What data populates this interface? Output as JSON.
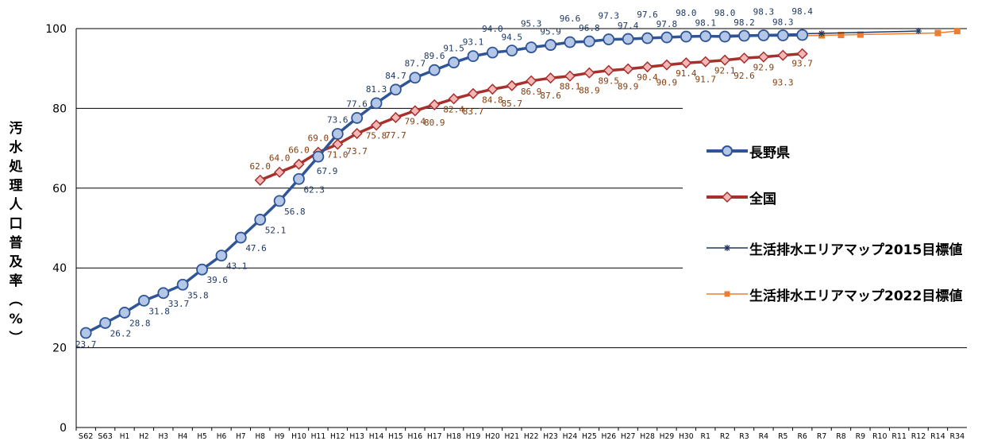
{
  "chart_data": {
    "type": "line",
    "title": "",
    "ylabel": "汚水処理人口普及率(%)",
    "xlabel": "",
    "ylim": [
      0,
      100
    ],
    "yticks": [
      0,
      20,
      40,
      60,
      80,
      100
    ],
    "grid": "horizontal",
    "legend_position": "right",
    "categories": [
      "S62",
      "S63",
      "H1",
      "H2",
      "H3",
      "H4",
      "H5",
      "H6",
      "H7",
      "H8",
      "H9",
      "H10",
      "H11",
      "H12",
      "H13",
      "H14",
      "H15",
      "H16",
      "H17",
      "H18",
      "H19",
      "H20",
      "H21",
      "H22",
      "H23",
      "H24",
      "H25",
      "H26",
      "H27",
      "H28",
      "H29",
      "H30",
      "R1",
      "R2",
      "R3",
      "R4",
      "R5",
      "R6",
      "R7",
      "R8",
      "R9",
      "R10",
      "R11",
      "R12",
      "R14",
      "R34"
    ],
    "series": [
      {
        "name": "長野県",
        "color": "#2F5597",
        "marker": "circle",
        "marker_fill": "#B4C7E7",
        "label_color": "#1F3864",
        "x": [
          "S62",
          "S63",
          "H1",
          "H2",
          "H3",
          "H4",
          "H5",
          "H6",
          "H7",
          "H8",
          "H9",
          "H10",
          "H11",
          "H12",
          "H13",
          "H14",
          "H15",
          "H16",
          "H17",
          "H18",
          "H19",
          "H20",
          "H21",
          "H22",
          "H23",
          "H24",
          "H25",
          "H26",
          "H27",
          "H28",
          "H29",
          "H30",
          "R1",
          "R2",
          "R3",
          "R4",
          "R5",
          "R6"
        ],
        "values": [
          23.7,
          26.2,
          28.8,
          31.8,
          33.7,
          35.8,
          39.6,
          43.1,
          47.6,
          52.1,
          56.8,
          62.3,
          67.9,
          73.6,
          77.6,
          81.3,
          84.7,
          87.7,
          89.6,
          91.5,
          93.1,
          94.0,
          94.5,
          95.3,
          95.9,
          96.6,
          96.8,
          97.3,
          97.4,
          97.6,
          97.8,
          98.0,
          98.1,
          98.0,
          98.2,
          98.3,
          98.3,
          98.4
        ],
        "labels": [
          "23.7",
          "26.2",
          "28.8",
          "31.8",
          "33.7",
          "35.8",
          "39.6",
          "43.1",
          "47.6",
          "52.1",
          "56.8",
          "62.3",
          "67.9",
          "73.6",
          "77.6",
          "81.3",
          "84.7",
          "87.7",
          "89.6",
          "91.5",
          "93.1",
          "94.0",
          "94.5",
          "95.3",
          "95.9",
          "96.6",
          "96.8",
          "97.3",
          "97.4",
          "97.6",
          "97.8",
          "98.0",
          "98.1",
          "98.0",
          "98.2",
          "98.3",
          "98.3",
          "98.4"
        ]
      },
      {
        "name": "全国",
        "color": "#A5302C",
        "marker": "diamond",
        "marker_fill": "#F4B6B6",
        "label_color": "#843C0C",
        "x": [
          "H8",
          "H9",
          "H10",
          "H11",
          "H12",
          "H13",
          "H14",
          "H15",
          "H16",
          "H17",
          "H18",
          "H19",
          "H20",
          "H21",
          "H22",
          "H23",
          "H24",
          "H25",
          "H26",
          "H27",
          "H28",
          "H29",
          "H30",
          "R1",
          "R2",
          "R3",
          "R4",
          "R5",
          "R6"
        ],
        "values": [
          62.0,
          64.0,
          66.0,
          69.0,
          71.0,
          73.7,
          75.8,
          77.7,
          79.4,
          80.9,
          82.4,
          83.7,
          84.8,
          85.7,
          86.9,
          87.6,
          88.1,
          88.9,
          89.5,
          89.9,
          90.4,
          90.9,
          91.4,
          91.7,
          92.1,
          92.6,
          92.9,
          93.3,
          93.7
        ],
        "labels": [
          "62.0",
          "64.0",
          "66.0",
          "69.0",
          "71.0",
          "73.7",
          "75.8",
          "77.7",
          "79.4",
          "80.9",
          "82.4",
          "83.7",
          "84.8",
          "85.7",
          "86.9",
          "87.6",
          "88.1",
          "88.9",
          "89.5",
          "89.9",
          "90.4",
          "90.9",
          "91.4",
          "91.7",
          "92.1",
          "92.6",
          "92.9",
          "93.3",
          "93.7"
        ]
      },
      {
        "name": "生活排水エリアマップ2015目標値",
        "color": "#203864",
        "marker": "asterisk",
        "x": [
          "H28",
          "H29",
          "H30",
          "R1",
          "R2",
          "R3",
          "R4",
          "R5",
          "R6",
          "R7",
          "R12"
        ],
        "values": [
          97.6,
          97.9,
          98.0,
          98.1,
          98.3,
          98.4,
          98.5,
          98.6,
          98.7,
          98.8,
          99.4
        ]
      },
      {
        "name": "生活排水エリアマップ2022目標値",
        "color": "#ED7D31",
        "marker": "square",
        "x": [
          "R5",
          "R6",
          "R7",
          "R8",
          "R9",
          "R14",
          "R34"
        ],
        "values": [
          98.1,
          98.2,
          98.3,
          98.4,
          98.5,
          98.9,
          99.4
        ]
      }
    ]
  }
}
